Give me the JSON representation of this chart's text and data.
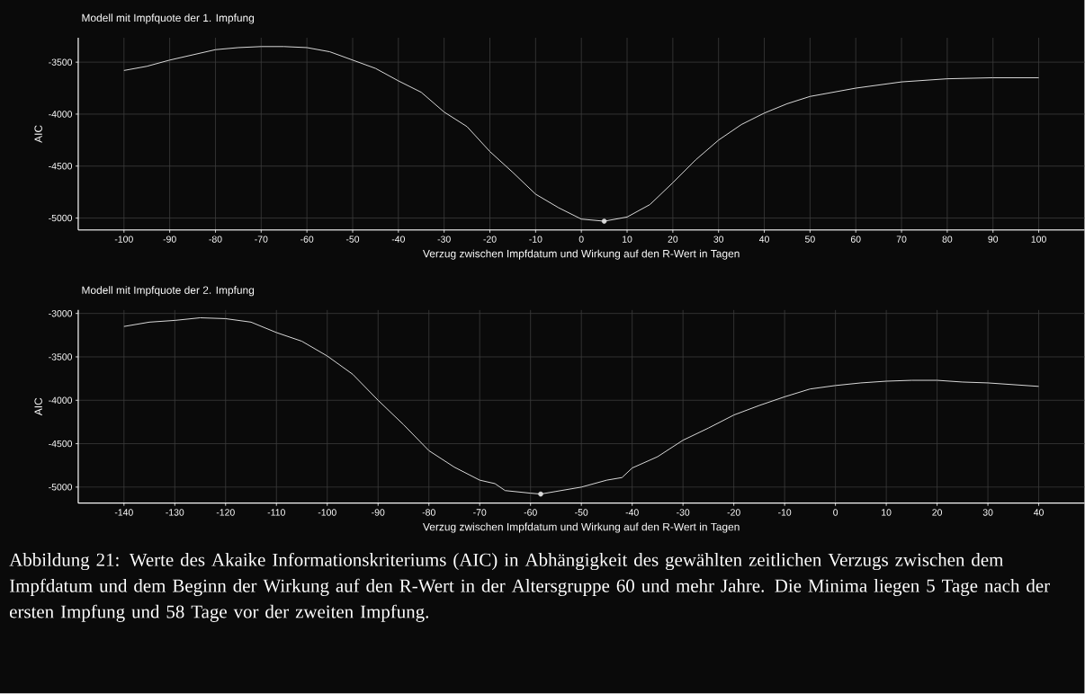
{
  "chart_data": [
    {
      "type": "line",
      "title": "Modell mit Impfquote der 1. Impfung",
      "xlabel": "Verzug zwischen Impfdatum und Wirkung auf den R-Wert in Tagen",
      "ylabel": "AIC",
      "grid": true,
      "xlim": [
        -110,
        110
      ],
      "ylim": [
        -5115,
        -3265
      ],
      "xticks": [
        -100,
        -90,
        -80,
        -70,
        -60,
        -50,
        -40,
        -30,
        -20,
        -10,
        0,
        10,
        20,
        30,
        40,
        50,
        60,
        70,
        80,
        90,
        100
      ],
      "yticks": [
        -5000,
        -4500,
        -4000,
        -3500
      ],
      "series": [
        {
          "color": "#d9d9d9",
          "x": [
            -100,
            -95,
            -90,
            -85,
            -80,
            -75,
            -70,
            -65,
            -60,
            -55,
            -50,
            -45,
            -40,
            -35,
            -30,
            -25,
            -20,
            -15,
            -10,
            -5,
            0,
            5,
            10,
            15,
            20,
            25,
            30,
            35,
            40,
            45,
            50,
            60,
            70,
            80,
            90,
            100
          ],
          "values": [
            -3580,
            -3540,
            -3480,
            -3430,
            -3380,
            -3360,
            -3350,
            -3350,
            -3360,
            -3400,
            -3480,
            -3560,
            -3680,
            -3790,
            -3980,
            -4120,
            -4360,
            -4560,
            -4770,
            -4900,
            -5010,
            -5030,
            -4990,
            -4870,
            -4660,
            -4440,
            -4250,
            -4100,
            -3990,
            -3900,
            -3830,
            -3750,
            -3690,
            -3660,
            -3650,
            -3650
          ]
        },
        {
          "type": "scatter",
          "color": "#d9d9d9",
          "marker": "circle",
          "x": [
            5
          ],
          "values": [
            -5030
          ]
        }
      ]
    },
    {
      "type": "line",
      "title": "Modell mit Impfquote der 2. Impfung",
      "xlabel": "Verzug zwischen Impfdatum und Wirkung auf den R-Wert in Tagen",
      "ylabel": "AIC",
      "grid": true,
      "xlim": [
        -149,
        49
      ],
      "ylim": [
        -5185,
        -2960
      ],
      "xticks": [
        -140,
        -130,
        -120,
        -110,
        -100,
        -90,
        -80,
        -70,
        -60,
        -50,
        -40,
        -30,
        -20,
        -10,
        0,
        10,
        20,
        30,
        40
      ],
      "yticks": [
        -5000,
        -4500,
        -4000,
        -3500,
        -3000
      ],
      "series": [
        {
          "color": "#d9d9d9",
          "x": [
            -140,
            -135,
            -130,
            -125,
            -120,
            -115,
            -110,
            -105,
            -100,
            -95,
            -90,
            -85,
            -80,
            -75,
            -70,
            -67,
            -65,
            -60,
            -58,
            -55,
            -50,
            -45,
            -42,
            -40,
            -35,
            -30,
            -25,
            -20,
            -15,
            -10,
            -5,
            0,
            5,
            10,
            15,
            20,
            25,
            30,
            35,
            40
          ],
          "values": [
            -3150,
            -3100,
            -3080,
            -3050,
            -3060,
            -3100,
            -3220,
            -3320,
            -3490,
            -3700,
            -4000,
            -4280,
            -4580,
            -4770,
            -4920,
            -4960,
            -5040,
            -5070,
            -5080,
            -5050,
            -5000,
            -4920,
            -4890,
            -4780,
            -4650,
            -4460,
            -4320,
            -4170,
            -4060,
            -3960,
            -3870,
            -3830,
            -3800,
            -3780,
            -3770,
            -3770,
            -3790,
            -3800,
            -3820,
            -3840
          ]
        },
        {
          "type": "scatter",
          "color": "#d9d9d9",
          "marker": "circle",
          "x": [
            -58
          ],
          "values": [
            -5080
          ]
        }
      ],
      "annotations": [
        "Abbildung 21: Werte des Akaike Informationskriteriums (AIC) in Abhängigkeit des gewählten zeitlichen Verzugs zwischen dem Impfdatum und dem Beginn der Wirkung auf den R-Wert in der Altersgruppe 60 und mehr Jahre.  Die Minima liegen 5 Tage nach der ersten Impfung und 58 Tage vor der zweiten Impfung."
      ]
    }
  ]
}
